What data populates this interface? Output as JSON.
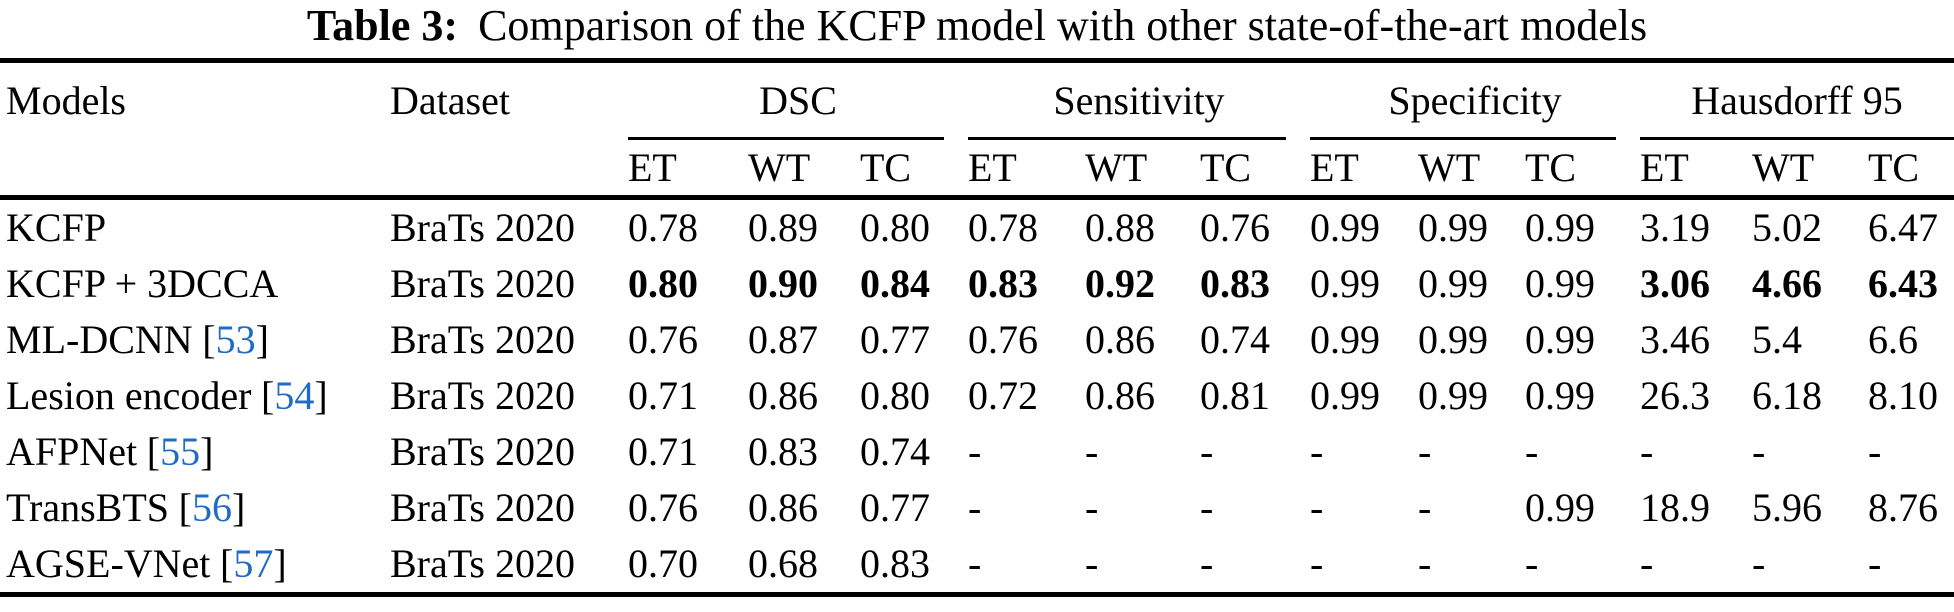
{
  "caption": {
    "label": "Table 3:",
    "text": "Comparison of the KCFP model with other state-of-the-art models"
  },
  "colors": {
    "citation": "#1f6cc5",
    "text": "#000000",
    "background": "#ffffff"
  },
  "table": {
    "cite_open": "[",
    "cite_close": "]",
    "col_headers": {
      "models": "Models",
      "dataset": "Dataset"
    },
    "groups": [
      {
        "label": "DSC",
        "sub": [
          "ET",
          "WT",
          "TC"
        ]
      },
      {
        "label": "Sensitivity",
        "sub": [
          "ET",
          "WT",
          "TC"
        ]
      },
      {
        "label": "Specificity",
        "sub": [
          "ET",
          "WT",
          "TC"
        ]
      },
      {
        "label": "Hausdorff 95",
        "sub": [
          "ET",
          "WT",
          "TC"
        ]
      }
    ],
    "rows": [
      {
        "model": "KCFP",
        "dataset": "BraTs 2020",
        "values": [
          "0.78",
          "0.89",
          "0.80",
          "0.78",
          "0.88",
          "0.76",
          "0.99",
          "0.99",
          "0.99",
          "3.19",
          "5.02",
          "6.47"
        ],
        "bold_indices": []
      },
      {
        "model": "KCFP + 3DCCA",
        "dataset": "BraTs 2020",
        "values": [
          "0.80",
          "0.90",
          "0.84",
          "0.83",
          "0.92",
          "0.83",
          "0.99",
          "0.99",
          "0.99",
          "3.06",
          "4.66",
          "6.43"
        ],
        "bold_indices": [
          0,
          1,
          2,
          3,
          4,
          5,
          9,
          10,
          11
        ]
      },
      {
        "model": "ML-DCNN",
        "cite": "53",
        "dataset": "BraTs 2020",
        "values": [
          "0.76",
          "0.87",
          "0.77",
          "0.76",
          "0.86",
          "0.74",
          "0.99",
          "0.99",
          "0.99",
          "3.46",
          "5.4",
          "6.6"
        ],
        "bold_indices": []
      },
      {
        "model": "Lesion encoder",
        "cite": "54",
        "dataset": "BraTs 2020",
        "values": [
          "0.71",
          "0.86",
          "0.80",
          "0.72",
          "0.86",
          "0.81",
          "0.99",
          "0.99",
          "0.99",
          "26.3",
          "6.18",
          "8.10"
        ],
        "bold_indices": []
      },
      {
        "model": "AFPNet",
        "cite": "55",
        "dataset": "BraTs 2020",
        "values": [
          "0.71",
          "0.83",
          "0.74",
          "-",
          "-",
          "-",
          "-",
          "-",
          "-",
          "-",
          "-",
          "-"
        ],
        "bold_indices": []
      },
      {
        "model": "TransBTS",
        "cite": "56",
        "dataset": "BraTs 2020",
        "values": [
          "0.76",
          "0.86",
          "0.77",
          "-",
          "-",
          "-",
          "-",
          "-",
          "0.99",
          "18.9",
          "5.96",
          "8.76"
        ],
        "bold_indices": []
      },
      {
        "model": "AGSE-VNet",
        "cite": "57",
        "dataset": "BraTs 2020",
        "values": [
          "0.70",
          "0.68",
          "0.83",
          "-",
          "-",
          "-",
          "-",
          "-",
          "-",
          "-",
          "-",
          "-"
        ],
        "bold_indices": []
      }
    ]
  }
}
